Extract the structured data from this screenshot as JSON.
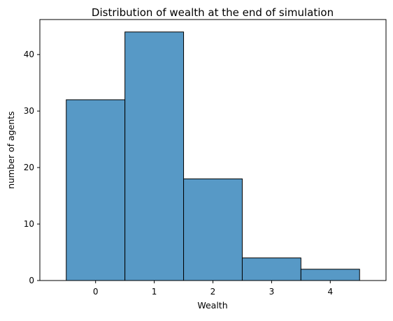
{
  "chart_data": {
    "type": "bar",
    "title": "Distribution of wealth at the end of simulation",
    "xlabel": "Wealth",
    "ylabel": "number of agents",
    "categories": [
      "0",
      "1",
      "2",
      "3",
      "4"
    ],
    "values": [
      32,
      44,
      18,
      4,
      2
    ],
    "x_ticks": [
      0,
      1,
      2,
      3,
      4
    ],
    "y_ticks": [
      0,
      10,
      20,
      30,
      40
    ],
    "xlim": [
      -0.95,
      4.95
    ],
    "ylim": [
      0,
      46.2
    ],
    "bar_color": "#5799c6",
    "edge_color": "#000000",
    "grid": false,
    "legend": "none"
  }
}
